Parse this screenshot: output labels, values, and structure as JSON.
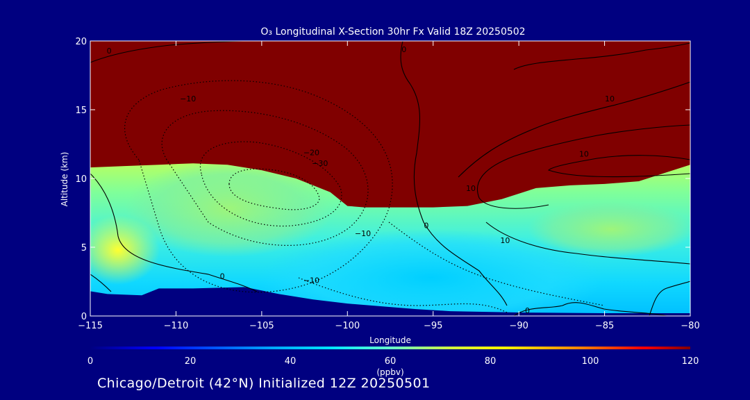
{
  "chart_data": {
    "type": "heatmap",
    "title": "O₃ Longitudinal X-Section 30hr  Fx Valid 18Z 20250502",
    "xlabel": "Longitude",
    "ylabel": "Altitude (km)",
    "xlim": [
      -115,
      -80
    ],
    "ylim": [
      0,
      20
    ],
    "x_ticks": [
      -115,
      -110,
      -105,
      -100,
      -95,
      -90,
      -85,
      -80
    ],
    "x_tick_labels": [
      "−115",
      "−110",
      "−105",
      "−100",
      "−95",
      "−90",
      "−85",
      "−80"
    ],
    "y_ticks": [
      0,
      5,
      10,
      15,
      20
    ],
    "y_tick_labels": [
      "0",
      "5",
      "10",
      "15",
      "20"
    ],
    "colorbar": {
      "label": "(ppbv)",
      "range": [
        0,
        120
      ],
      "ticks": [
        0,
        20,
        40,
        60,
        80,
        100,
        120
      ],
      "tick_labels": [
        "0",
        "20",
        "40",
        "60",
        "80",
        "100",
        "120"
      ]
    },
    "stratosphere_boundary_km": [
      [
        -115,
        10.8
      ],
      [
        -113,
        10.9
      ],
      [
        -111,
        11.0
      ],
      [
        -109,
        11.1
      ],
      [
        -107,
        11.0
      ],
      [
        -105,
        10.6
      ],
      [
        -103,
        10.0
      ],
      [
        -101,
        9.0
      ],
      [
        -100,
        8.0
      ],
      [
        -99,
        7.9
      ],
      [
        -97,
        7.9
      ],
      [
        -95,
        7.9
      ],
      [
        -93,
        8.0
      ],
      [
        -91,
        8.5
      ],
      [
        -89,
        9.3
      ],
      [
        -87,
        9.5
      ],
      [
        -85,
        9.6
      ],
      [
        -83,
        9.8
      ],
      [
        -81,
        10.6
      ],
      [
        -80,
        11.0
      ]
    ],
    "terrain_km": [
      [
        -115,
        1.8
      ],
      [
        -114,
        1.6
      ],
      [
        -112,
        1.5
      ],
      [
        -111,
        2.0
      ],
      [
        -109,
        2.0
      ],
      [
        -106,
        2.1
      ],
      [
        -104,
        1.6
      ],
      [
        -102,
        1.2
      ],
      [
        -100,
        0.9
      ],
      [
        -98,
        0.7
      ],
      [
        -96,
        0.5
      ],
      [
        -94,
        0.35
      ],
      [
        -90,
        0.25
      ],
      [
        -85,
        0.2
      ],
      [
        -80,
        0.2
      ]
    ],
    "contour_labels": [
      {
        "text": "0",
        "x": -113.9,
        "y": 19.1
      },
      {
        "text": "0",
        "x": -96.7,
        "y": 19.2
      },
      {
        "text": "−10",
        "x": -109.3,
        "y": 15.6
      },
      {
        "text": "10",
        "x": -84.7,
        "y": 15.6
      },
      {
        "text": "−20",
        "x": -102.1,
        "y": 11.7
      },
      {
        "text": "−30",
        "x": -101.6,
        "y": 10.9
      },
      {
        "text": "10",
        "x": -86.2,
        "y": 11.6
      },
      {
        "text": "10",
        "x": -92.8,
        "y": 9.1
      },
      {
        "text": "0",
        "x": -95.4,
        "y": 6.4
      },
      {
        "text": "−10",
        "x": -99.1,
        "y": 5.8
      },
      {
        "text": "10",
        "x": -90.8,
        "y": 5.3
      },
      {
        "text": "0",
        "x": -107.3,
        "y": 2.7
      },
      {
        "text": "−10",
        "x": -102.1,
        "y": 2.4
      },
      {
        "text": "0",
        "x": -89.5,
        "y": 0.2
      }
    ]
  },
  "footer": "Chicago/Detroit (42°N) Initialized 12Z 20250501"
}
